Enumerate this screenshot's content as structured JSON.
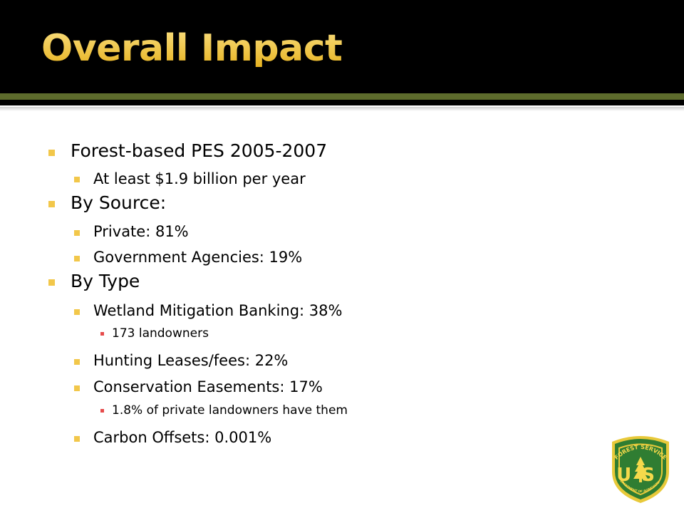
{
  "slide": {
    "title": "Overall Impact",
    "bullets": [
      {
        "level": 1,
        "text": "Forest-based PES 2005-2007"
      },
      {
        "level": 2,
        "text": "At least $1.9 billion per year"
      },
      {
        "level": 1,
        "text": "By Source:"
      },
      {
        "level": 2,
        "text": "Private:  81%"
      },
      {
        "level": 2,
        "text": "Government Agencies:  19%"
      },
      {
        "level": 1,
        "text": "By Type"
      },
      {
        "level": 2,
        "text": "Wetland Mitigation Banking:  38%"
      },
      {
        "level": 3,
        "text": "173 landowners"
      },
      {
        "level": 2,
        "text": "Hunting Leases/fees:  22%"
      },
      {
        "level": 2,
        "text": "Conservation Easements:  17%"
      },
      {
        "level": 3,
        "text": "1.8% of private landowners have them"
      },
      {
        "level": 2,
        "text": "Carbon Offsets:  0.001%"
      }
    ]
  },
  "logo": {
    "top_text": "FOREST SERVICE",
    "letters": "US",
    "bottom_text": "DEPARTMENT OF AGRICULTURE",
    "colors": {
      "shield": "#2f7d32",
      "rim": "#e8c93a",
      "text": "#f5d94b"
    }
  },
  "colors": {
    "title": "#f2c74a",
    "header_background": "#000000",
    "rule": "#5d6b2c",
    "body_background": "#ffffff",
    "bullet_primary": "#f2c74a",
    "bullet_tertiary": "#e64b4b"
  }
}
